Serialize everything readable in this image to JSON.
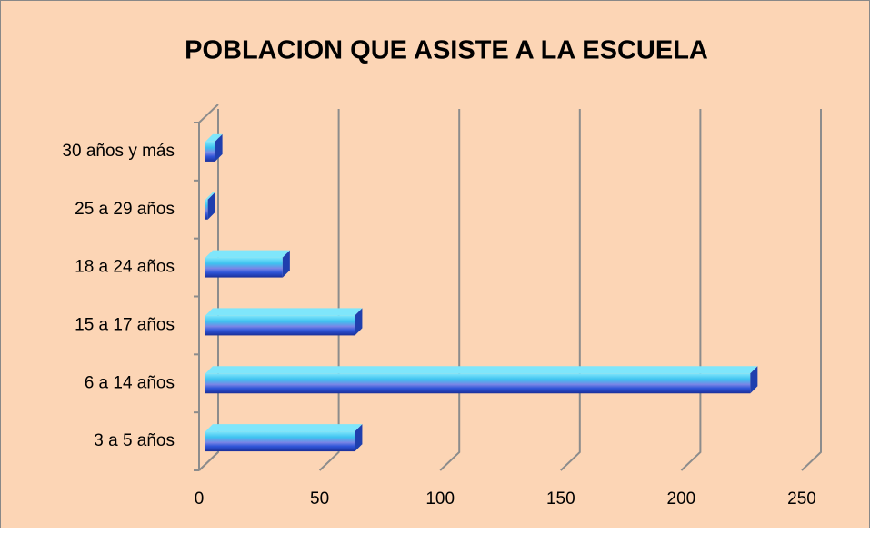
{
  "chart_data": {
    "type": "bar",
    "orientation": "horizontal",
    "title": "POBLACION QUE ASISTE A LA ESCUELA",
    "categories": [
      "3 a 5 años",
      "6 a 14 años",
      "15 a 17 años",
      "18 a 24 años",
      "25 a 29 años",
      "30 años y más"
    ],
    "values": [
      62,
      226,
      62,
      32,
      1,
      4
    ],
    "color": "#2f7fe0",
    "xlim": [
      0,
      250
    ],
    "xticks": [
      0,
      50,
      100,
      150,
      200,
      250
    ],
    "grid": true
  }
}
